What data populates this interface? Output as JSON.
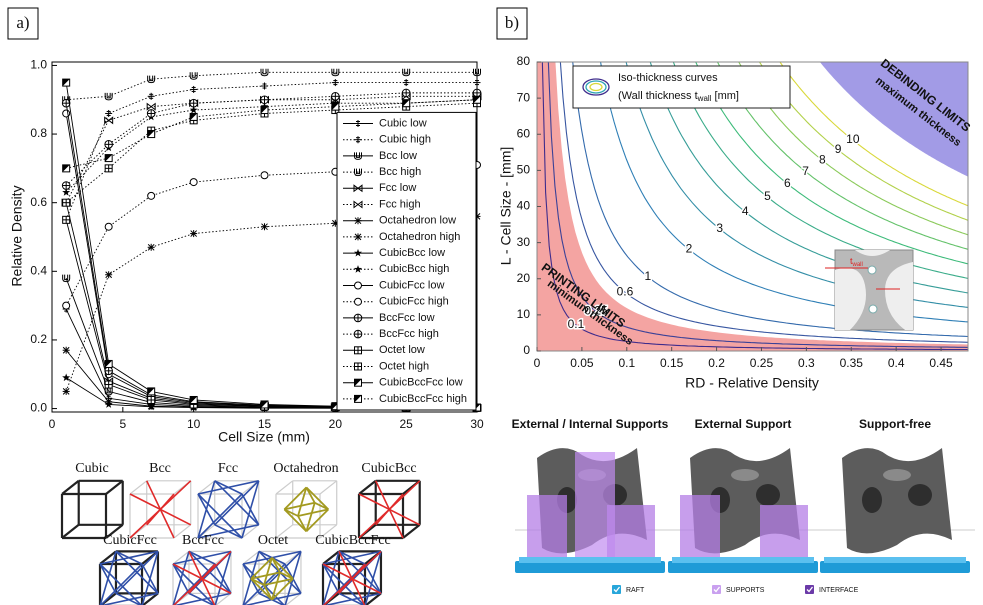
{
  "panel_labels": [
    "a)",
    "b)"
  ],
  "chart_data": [
    {
      "type": "line",
      "xlabel": "Cell Size (mm)",
      "ylabel": "Relative Density",
      "x": [
        1,
        4,
        7,
        10,
        15,
        20,
        25,
        30
      ],
      "xlim": [
        0,
        30
      ],
      "ylim": [
        -0.01,
        1.01
      ],
      "xticks": [
        0,
        5,
        10,
        15,
        20,
        25,
        30
      ],
      "yticks": [
        {
          "value": 0,
          "label": "0.0"
        },
        0.2,
        0.4,
        0.6,
        0.8,
        {
          "value": 1,
          "label": "1.0"
        }
      ],
      "grid": false,
      "legend": "lower right",
      "color": "#000000",
      "series": [
        {
          "name": "Cubic low",
          "line": "solid",
          "marker": "plus",
          "values": [
            0.29,
            0.03,
            0.012,
            0.006,
            0.003,
            0.002,
            0.001,
            0.001
          ]
        },
        {
          "name": "Cubic high",
          "line": "dotted",
          "marker": "plus",
          "values": [
            0.55,
            0.86,
            0.91,
            0.93,
            0.94,
            0.95,
            0.95,
            0.95
          ]
        },
        {
          "name": "Bcc low",
          "line": "solid",
          "marker": "cup",
          "values": [
            0.38,
            0.05,
            0.018,
            0.009,
            0.004,
            0.002,
            0.002,
            0.001
          ]
        },
        {
          "name": "Bcc high",
          "line": "dotted",
          "marker": "cup",
          "values": [
            0.9,
            0.91,
            0.96,
            0.97,
            0.98,
            0.98,
            0.98,
            0.98
          ]
        },
        {
          "name": "Fcc low",
          "line": "solid",
          "marker": "bowtie",
          "values": [
            0.6,
            0.08,
            0.03,
            0.015,
            0.007,
            0.004,
            0.003,
            0.002
          ]
        },
        {
          "name": "Fcc high",
          "line": "dotted",
          "marker": "bowtie",
          "values": [
            0.6,
            0.84,
            0.88,
            0.89,
            0.9,
            0.9,
            0.91,
            0.91
          ]
        },
        {
          "name": "Octahedron low",
          "line": "solid",
          "marker": "asterisk",
          "values": [
            0.17,
            0.02,
            0.007,
            0.004,
            0.002,
            0.001,
            0.001,
            0.001
          ]
        },
        {
          "name": "Octahedron high",
          "line": "dotted",
          "marker": "asterisk",
          "values": [
            0.05,
            0.39,
            0.47,
            0.51,
            0.53,
            0.54,
            0.55,
            0.56
          ]
        },
        {
          "name": "CubicBcc low",
          "line": "solid",
          "marker": "star",
          "values": [
            0.09,
            0.012,
            0.005,
            0.003,
            0.001,
            0.001,
            0,
            0
          ]
        },
        {
          "name": "CubicBcc high",
          "line": "dotted",
          "marker": "star",
          "values": [
            0.63,
            0.76,
            0.85,
            0.87,
            0.88,
            0.89,
            0.89,
            0.9
          ]
        },
        {
          "name": "CubicFcc low",
          "line": "solid",
          "marker": "circle",
          "values": [
            0.86,
            0.1,
            0.035,
            0.018,
            0.008,
            0.005,
            0.003,
            0.002
          ]
        },
        {
          "name": "CubicFcc high",
          "line": "dotted",
          "marker": "circle",
          "values": [
            0.3,
            0.53,
            0.62,
            0.66,
            0.68,
            0.69,
            0.7,
            0.71
          ]
        },
        {
          "name": "BccFcc low",
          "line": "solid",
          "marker": "circled-plus",
          "values": [
            0.89,
            0.11,
            0.04,
            0.02,
            0.01,
            0.006,
            0.004,
            0.003
          ]
        },
        {
          "name": "BccFcc high",
          "line": "dotted",
          "marker": "circled-plus",
          "values": [
            0.65,
            0.77,
            0.86,
            0.89,
            0.9,
            0.91,
            0.92,
            0.92
          ]
        },
        {
          "name": "Octet low",
          "line": "solid",
          "marker": "boxed-plus",
          "values": [
            0.55,
            0.07,
            0.025,
            0.012,
            0.006,
            0.004,
            0.002,
            0.002
          ]
        },
        {
          "name": "Octet high",
          "line": "dotted",
          "marker": "boxed-plus",
          "values": [
            0.6,
            0.7,
            0.81,
            0.84,
            0.86,
            0.87,
            0.88,
            0.89
          ]
        },
        {
          "name": "CubicBccFcc low",
          "line": "solid",
          "marker": "half-square",
          "values": [
            0.95,
            0.13,
            0.05,
            0.025,
            0.012,
            0.007,
            0.005,
            0.003
          ]
        },
        {
          "name": "CubicBccFcc high",
          "line": "dotted",
          "marker": "half-square",
          "values": [
            0.7,
            0.73,
            0.8,
            0.85,
            0.87,
            0.88,
            0.89,
            0.9
          ]
        }
      ]
    },
    {
      "type": "contour",
      "xlabel": "RD - Relative Density",
      "ylabel": "L - Cell Size - [mm]",
      "xlim": [
        0,
        0.48
      ],
      "ylim": [
        0,
        80
      ],
      "xticks": [
        0,
        0.05,
        0.1,
        0.15,
        0.2,
        0.25,
        0.3,
        0.35,
        0.4,
        0.45
      ],
      "yticks": [
        0,
        10,
        20,
        30,
        40,
        50,
        60,
        70,
        80
      ],
      "levels": [
        0.1,
        0.25,
        0.6,
        1,
        2,
        3,
        4,
        5,
        6,
        7,
        8,
        9,
        10
      ],
      "colormap": [
        "#3f2c8c",
        "#2f7fb6",
        "#3dbb7a",
        "#d9d83a"
      ],
      "legend_title": "Iso-thickness curves",
      "legend_parts": [
        "(Wall thickness t",
        "wall",
        " [mm]"
      ],
      "annotations": [
        "PRINTING LIMITS",
        "minimum thickness",
        "DEBINDING LIMITS",
        "maximum thickness"
      ],
      "inset_label": [
        "t",
        "wall"
      ]
    }
  ],
  "lattice": {
    "row1": [
      "Cubic",
      "Bcc",
      "Fcc",
      "Octahedron",
      "CubicBcc"
    ],
    "row2": [
      "CubicFcc",
      "BccFcc",
      "Octet",
      "CubicBccFcc"
    ]
  },
  "printing": {
    "titles": [
      "External / Internal Supports",
      "External Support",
      "Support-free"
    ],
    "legend": [
      "RAFT",
      "SUPPORTS",
      "INTERFACE"
    ]
  }
}
